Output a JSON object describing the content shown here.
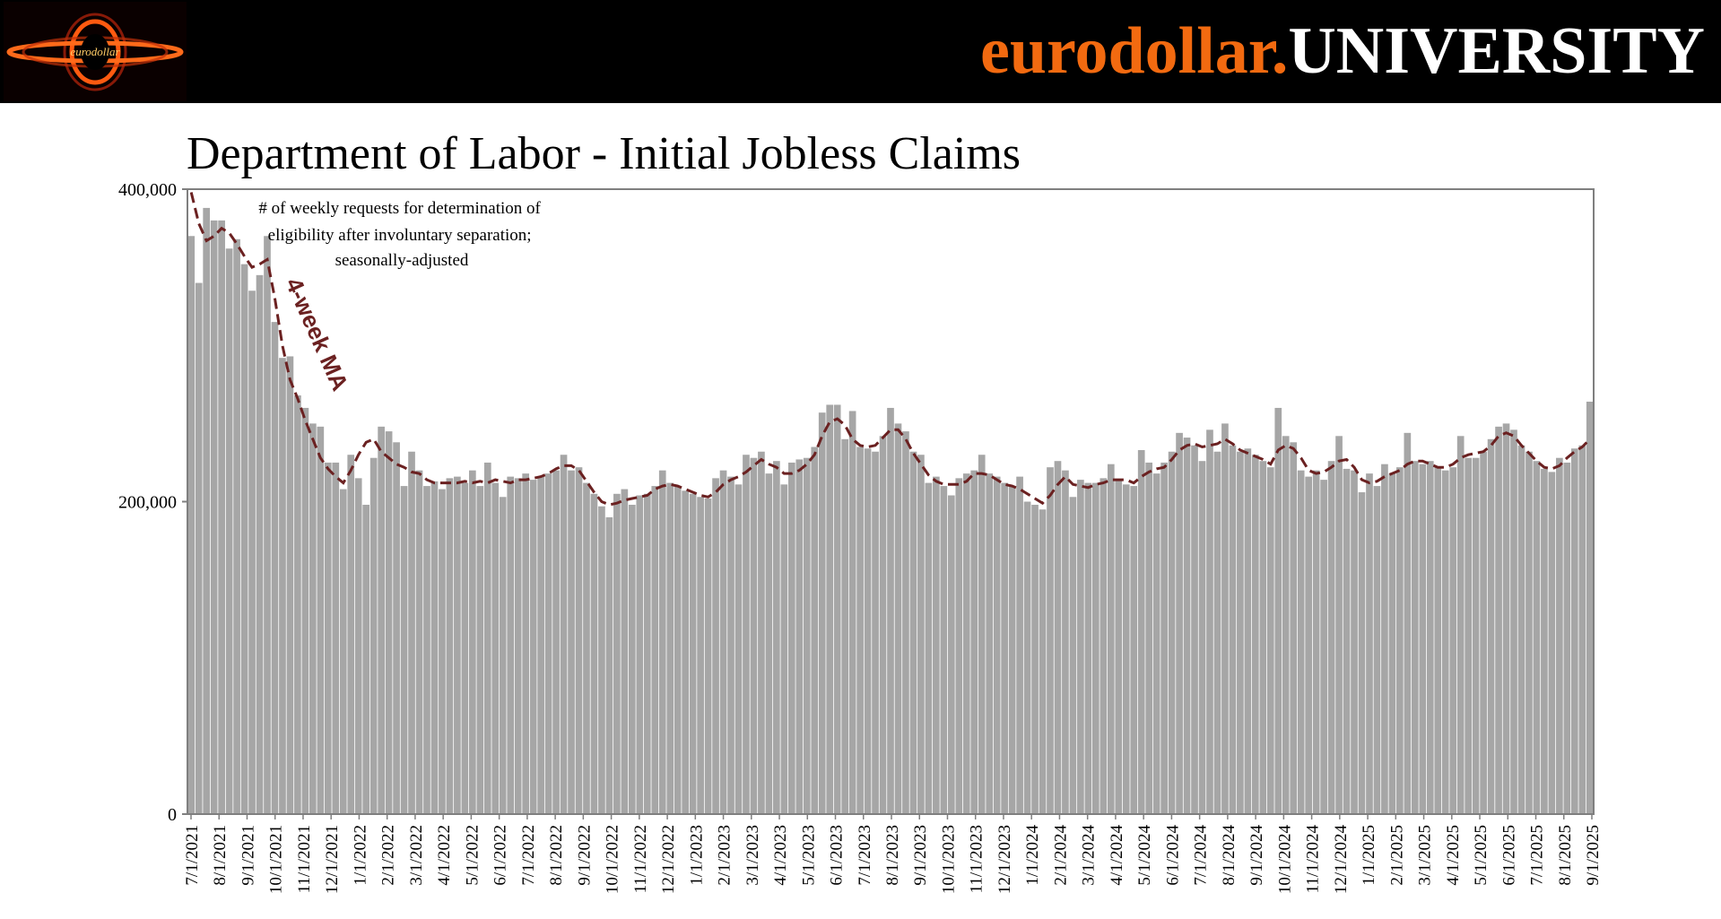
{
  "header": {
    "brand_prefix": "eurodollar.",
    "brand_suffix": "UNIVERSITY",
    "logo_icon": "black-hole-logo-icon",
    "logo_text": "eurodollar"
  },
  "colors": {
    "accent": "#f26a10",
    "bars": "#a6a6a6",
    "ma_line": "#6b2121"
  },
  "chart_data": {
    "type": "bar",
    "title": "Department of Labor - Initial Jobless Claims",
    "annotation": "# of weekly requests for determination of eligibility after involuntary separation; seasonally-adjusted",
    "annotation_lines": [
      "# of weekly requests for determination of",
      "eligibility after involuntary separation;",
      "seasonally-adjusted"
    ],
    "ma_label": "4-week MA",
    "ylim": [
      0,
      400000
    ],
    "y_ticks": [
      0,
      200000,
      400000
    ],
    "y_tick_labels": [
      "0",
      "200,000",
      "400,000"
    ],
    "x_tick_labels": [
      "7/1/2021",
      "8/1/2021",
      "9/1/2021",
      "10/1/2021",
      "11/1/2021",
      "12/1/2021",
      "1/1/2022",
      "2/1/2022",
      "3/1/2022",
      "4/1/2022",
      "5/1/2022",
      "6/1/2022",
      "7/1/2022",
      "8/1/2022",
      "9/1/2022",
      "10/1/2022",
      "11/1/2022",
      "12/1/2022",
      "1/1/2023",
      "2/1/2023",
      "3/1/2023",
      "4/1/2023",
      "5/1/2023",
      "6/1/2023",
      "7/1/2023",
      "8/1/2023",
      "9/1/2023",
      "10/1/2023",
      "11/1/2023",
      "12/1/2023",
      "1/1/2024",
      "2/1/2024",
      "3/1/2024",
      "4/1/2024",
      "5/1/2024",
      "6/1/2024",
      "7/1/2024",
      "8/1/2024",
      "9/1/2024",
      "10/1/2024",
      "11/1/2024",
      "12/1/2024",
      "1/1/2025",
      "2/1/2025",
      "3/1/2025",
      "4/1/2025",
      "5/1/2025",
      "6/1/2025",
      "7/1/2025",
      "8/1/2025",
      "9/1/2025"
    ],
    "grid": false,
    "series": [
      {
        "values": [
          370000,
          340000,
          388000,
          380000,
          380000,
          362000,
          368000,
          352000,
          335000,
          345000,
          370000,
          315000,
          292000,
          293000,
          268000,
          260000,
          250000,
          248000,
          225000,
          225000,
          208000,
          230000,
          215000,
          198000,
          228000,
          248000,
          245000,
          238000,
          210000,
          232000,
          220000,
          210000,
          213000,
          208000,
          215000,
          216000,
          212000,
          220000,
          210000,
          225000,
          212000,
          203000,
          216000,
          215000,
          218000,
          214000,
          216000,
          218000,
          220000,
          230000,
          220000,
          222000,
          212000,
          205000,
          197000,
          190000,
          205000,
          208000,
          198000,
          204000,
          205000,
          210000,
          220000,
          212000,
          210000,
          207000,
          205000,
          203000,
          202000,
          215000,
          220000,
          216000,
          211000,
          230000,
          228000,
          232000,
          218000,
          226000,
          211000,
          225000,
          227000,
          228000,
          235000,
          257000,
          262000,
          262000,
          240000,
          258000,
          235000,
          234000,
          232000,
          242000,
          260000,
          250000,
          245000,
          232000,
          230000,
          212000,
          216000,
          210000,
          204000,
          215000,
          218000,
          220000,
          230000,
          218000,
          216000,
          212000,
          210000,
          216000,
          200000,
          198000,
          195000,
          222000,
          226000,
          220000,
          203000,
          214000,
          212000,
          212000,
          215000,
          224000,
          214000,
          211000,
          210000,
          233000,
          225000,
          218000,
          225000,
          232000,
          244000,
          241000,
          236000,
          226000,
          246000,
          232000,
          250000,
          236000,
          232000,
          234000,
          230000,
          226000,
          222000,
          260000,
          242000,
          238000,
          220000,
          216000,
          220000,
          214000,
          226000,
          242000,
          221000,
          220000,
          206000,
          218000,
          210000,
          224000,
          218000,
          222000,
          244000,
          226000,
          224000,
          226000,
          222000,
          220000,
          222000,
          242000,
          228000,
          228000,
          232000,
          240000,
          248000,
          250000,
          246000,
          236000,
          232000,
          226000,
          221000,
          219000,
          228000,
          225000,
          234000,
          236000,
          264000
        ],
        "ma": [
          398000,
          378000,
          367000,
          370000,
          375000,
          372000,
          365000,
          357000,
          350000,
          352000,
          355000,
          330000,
          300000,
          278000,
          266000,
          252000,
          240000,
          228000,
          221000,
          216000,
          212000,
          220000,
          230000,
          238000,
          240000,
          232000,
          228000,
          224000,
          222000,
          219000,
          218000,
          214000,
          212000,
          212000,
          212000,
          212000,
          213000,
          212000,
          213000,
          212000,
          214000,
          213000,
          212000,
          214000,
          214000,
          215000,
          216000,
          218000,
          221000,
          223000,
          223000,
          220000,
          213000,
          206000,
          200000,
          198000,
          199000,
          201000,
          202000,
          203000,
          204000,
          208000,
          210000,
          211000,
          210000,
          208000,
          206000,
          204000,
          203000,
          206000,
          211000,
          214000,
          216000,
          219000,
          223000,
          227000,
          224000,
          222000,
          218000,
          218000,
          220000,
          224000,
          230000,
          242000,
          251000,
          253000,
          249000,
          240000,
          236000,
          235000,
          236000,
          241000,
          246000,
          246000,
          240000,
          231000,
          224000,
          217000,
          213000,
          211000,
          211000,
          211000,
          213000,
          218000,
          218000,
          217000,
          214000,
          211000,
          210000,
          208000,
          205000,
          202000,
          199000,
          204000,
          211000,
          216000,
          211000,
          210000,
          209000,
          211000,
          212000,
          214000,
          214000,
          214000,
          212000,
          216000,
          219000,
          221000,
          222000,
          227000,
          233000,
          236000,
          237000,
          235000,
          236000,
          237000,
          240000,
          237000,
          233000,
          231000,
          229000,
          227000,
          224000,
          233000,
          236000,
          234000,
          228000,
          220000,
          218000,
          219000,
          222000,
          226000,
          227000,
          222000,
          214000,
          212000,
          213000,
          216000,
          218000,
          220000,
          224000,
          226000,
          226000,
          224000,
          222000,
          222000,
          224000,
          228000,
          230000,
          231000,
          232000,
          236000,
          242000,
          244000,
          242000,
          236000,
          231000,
          226000,
          222000,
          221000,
          223000,
          228000,
          232000,
          235000,
          240000
        ]
      }
    ]
  }
}
